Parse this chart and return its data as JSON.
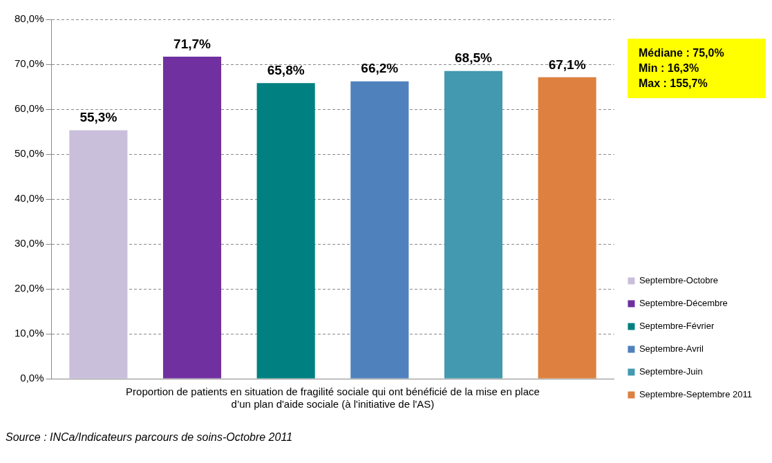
{
  "chart_data": {
    "type": "bar",
    "categories": [
      "Proportion de patients en situation de fragilité sociale qui ont bénéficié de la mise en place d’un plan d'aide sociale (à l'initiative de l'AS)"
    ],
    "series": [
      {
        "name": "Septembre-Octobre",
        "color": "#c9bfdb",
        "values": [
          55.3
        ],
        "value_labels": [
          "55,3%"
        ]
      },
      {
        "name": "Septembre-Décembre",
        "color": "#7030a0",
        "values": [
          71.7
        ],
        "value_labels": [
          "71,7%"
        ]
      },
      {
        "name": "Septembre-Février",
        "color": "#008080",
        "values": [
          65.8
        ],
        "value_labels": [
          "65,8%"
        ]
      },
      {
        "name": "Septembre-Avril",
        "color": "#4f81bd",
        "values": [
          66.2
        ],
        "value_labels": [
          "66,2%"
        ]
      },
      {
        "name": "Septembre-Juin",
        "color": "#4299b0",
        "values": [
          68.5
        ],
        "value_labels": [
          "68,5%"
        ]
      },
      {
        "name": "Septembre-Septembre 2011",
        "color": "#dd8040",
        "values": [
          67.1
        ],
        "value_labels": [
          "67,1%"
        ]
      }
    ],
    "ylim": [
      0,
      80
    ],
    "yticks": [
      {
        "value": 0,
        "label": "0,0%"
      },
      {
        "value": 10,
        "label": "10,0%"
      },
      {
        "value": 20,
        "label": "20,0%"
      },
      {
        "value": 30,
        "label": "30,0%"
      },
      {
        "value": 40,
        "label": "40,0%"
      },
      {
        "value": 50,
        "label": "50,0%"
      },
      {
        "value": 60,
        "label": "60,0%"
      },
      {
        "value": 70,
        "label": "70,0%"
      },
      {
        "value": 80,
        "label": "80,0%"
      }
    ],
    "grid": "y",
    "legend": "bottom right",
    "annotations": [
      "Médiane : 75,0%",
      "Min : 16,3%",
      "Max : 155,7%",
      "Source : INCa/Indicateurs parcours de soins-Octobre 2011"
    ]
  }
}
